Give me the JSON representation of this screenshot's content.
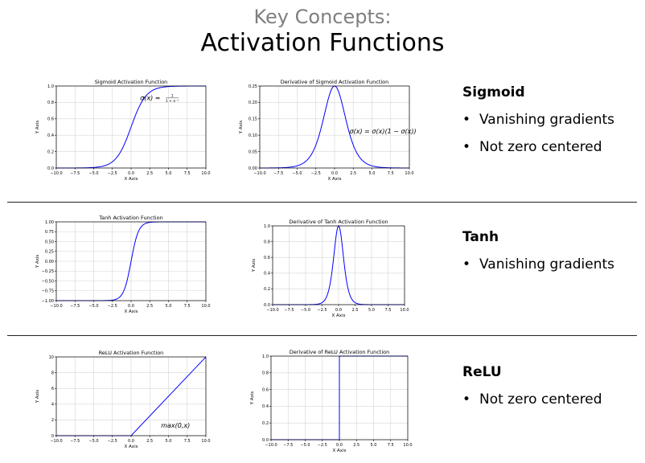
{
  "slide": {
    "kicker": "Key Concepts:",
    "title": "Activation Functions"
  },
  "sections": [
    {
      "heading": "Sigmoid",
      "bullets": [
        "Vanishing gradients",
        "Not zero centered"
      ]
    },
    {
      "heading": "Tanh",
      "bullets": [
        "Vanishing gradients"
      ]
    },
    {
      "heading": "ReLU",
      "bullets": [
        "Not zero centered"
      ]
    }
  ],
  "chart_data": [
    {
      "id": "sigmoid",
      "type": "line",
      "fn": "sigmoid",
      "title": "Sigmoid Activation Function",
      "xlabel": "X Axis",
      "ylabel": "Y Axis",
      "xlim": [
        -10,
        10
      ],
      "ylim": [
        0,
        1
      ],
      "xticks": [
        -10,
        -7.5,
        -5,
        -2.5,
        0,
        2.5,
        5,
        7.5,
        10
      ],
      "xtick_labels": [
        "−10.0",
        "−7.5",
        "−5.0",
        "−2.5",
        "0.0",
        "2.5",
        "5.0",
        "7.5",
        "10.0"
      ],
      "yticks": [
        0,
        0.2,
        0.4,
        0.6,
        0.8,
        1.0
      ],
      "ytick_labels": [
        "0.0",
        "0.2",
        "0.4",
        "0.6",
        "0.8",
        "1.0"
      ],
      "grid": true,
      "color": "#0000ff",
      "x": [
        -10,
        -8,
        -6,
        -5,
        -4,
        -3,
        -2,
        -1,
        0,
        1,
        2,
        3,
        4,
        5,
        6,
        8,
        10
      ],
      "y": [
        0.0,
        0.0,
        0.0,
        0.01,
        0.02,
        0.05,
        0.12,
        0.27,
        0.5,
        0.73,
        0.88,
        0.95,
        0.98,
        0.99,
        1.0,
        1.0,
        1.0
      ],
      "annotation": {
        "main": "σ(x) =",
        "num": "1",
        "den": "1 + e⁻ˣ",
        "x": 1.2,
        "y": 0.83
      }
    },
    {
      "id": "sigmoid-derivative",
      "type": "line",
      "fn": "dsigmoid",
      "title": "Derivative of Sigmoid Activation Function",
      "xlabel": "X Axis",
      "ylabel": "Y Axis",
      "xlim": [
        -10,
        10
      ],
      "ylim": [
        0,
        0.25
      ],
      "xticks": [
        -10,
        -7.5,
        -5,
        -2.5,
        0,
        2.5,
        5,
        7.5,
        10
      ],
      "xtick_labels": [
        "−10.0",
        "−7.5",
        "−5.0",
        "−2.5",
        "0.0",
        "2.5",
        "5.0",
        "7.5",
        "10.0"
      ],
      "yticks": [
        0,
        0.05,
        0.1,
        0.15,
        0.2,
        0.25
      ],
      "ytick_labels": [
        "0.00",
        "0.05",
        "0.10",
        "0.15",
        "0.20",
        "0.25"
      ],
      "grid": true,
      "color": "#0000ff",
      "x": [
        -10,
        -6,
        -4,
        -3,
        -2,
        -1,
        0,
        1,
        2,
        3,
        4,
        6,
        10
      ],
      "y": [
        0.0,
        0.0,
        0.02,
        0.05,
        0.1,
        0.2,
        0.25,
        0.2,
        0.1,
        0.05,
        0.02,
        0.0,
        0.0
      ],
      "annotation": {
        "main": "σ(x) = σ(x)(1 − σ(x))",
        "x": 2.0,
        "y": 0.105
      }
    },
    {
      "id": "tanh",
      "type": "line",
      "fn": "tanh",
      "title": "Tanh Activation Function",
      "xlabel": "X Axis",
      "ylabel": "Y Axis",
      "xlim": [
        -10,
        10
      ],
      "ylim": [
        -1,
        1
      ],
      "xticks": [
        -10,
        -7.5,
        -5,
        -2.5,
        0,
        2.5,
        5,
        7.5,
        10
      ],
      "xtick_labels": [
        "−10.0",
        "−7.5",
        "−5.0",
        "−2.5",
        "0.0",
        "2.5",
        "5.0",
        "7.5",
        "10.0"
      ],
      "yticks": [
        -1,
        -0.75,
        -0.5,
        -0.25,
        0,
        0.25,
        0.5,
        0.75,
        1
      ],
      "ytick_labels": [
        "−1.00",
        "−0.75",
        "−0.50",
        "−0.25",
        "0.00",
        "0.25",
        "0.50",
        "0.75",
        "1.00"
      ],
      "grid": true,
      "color": "#0000ff",
      "x": [
        -10,
        -4,
        -3,
        -2,
        -1,
        0,
        1,
        2,
        3,
        4,
        10
      ],
      "y": [
        -1.0,
        -1.0,
        -0.99,
        -0.96,
        -0.76,
        0.0,
        0.76,
        0.96,
        0.99,
        1.0,
        1.0
      ]
    },
    {
      "id": "tanh-derivative",
      "type": "line",
      "fn": "dtanh",
      "title": "Derivative of Tanh Activation Function",
      "xlabel": "X Axis",
      "ylabel": "Y Axis",
      "xlim": [
        -10,
        10
      ],
      "ylim": [
        0,
        1
      ],
      "xticks": [
        -10,
        -7.5,
        -5,
        -2.5,
        0,
        2.5,
        5,
        7.5,
        10
      ],
      "xtick_labels": [
        "−10.0",
        "−7.5",
        "−5.0",
        "−2.5",
        "0.0",
        "2.5",
        "5.0",
        "7.5",
        "10.0"
      ],
      "yticks": [
        0,
        0.2,
        0.4,
        0.6,
        0.8,
        1.0
      ],
      "ytick_labels": [
        "0.0",
        "0.2",
        "0.4",
        "0.6",
        "0.8",
        "1.0"
      ],
      "grid": true,
      "color": "#0000ff",
      "x": [
        -10,
        -3,
        -2,
        -1,
        -0.5,
        0,
        0.5,
        1,
        2,
        3,
        10
      ],
      "y": [
        0.0,
        0.01,
        0.07,
        0.42,
        0.79,
        1.0,
        0.79,
        0.42,
        0.07,
        0.01,
        0.0
      ]
    },
    {
      "id": "relu",
      "type": "line",
      "fn": "relu",
      "title": "ReLU Activation Function",
      "xlabel": "X Axis",
      "ylabel": "Y Axis",
      "xlim": [
        -10,
        10
      ],
      "ylim": [
        0,
        10
      ],
      "xticks": [
        -10,
        -7.5,
        -5,
        -2.5,
        0,
        2.5,
        5,
        7.5,
        10
      ],
      "xtick_labels": [
        "−10.0",
        "−7.5",
        "−5.0",
        "−2.5",
        "0.0",
        "2.5",
        "5.0",
        "7.5",
        "10.0"
      ],
      "yticks": [
        0,
        2,
        4,
        6,
        8,
        10
      ],
      "ytick_labels": [
        "0",
        "2",
        "4",
        "6",
        "8",
        "10"
      ],
      "grid": true,
      "color": "#0000ff",
      "x": [
        -10,
        0,
        10
      ],
      "y": [
        0,
        0,
        10
      ],
      "annotation": {
        "main": "max(0,x)",
        "x": 4.0,
        "y": 1.0
      }
    },
    {
      "id": "relu-derivative",
      "type": "line",
      "fn": "drelu",
      "title": "Derivative of ReLU Activation Function",
      "xlabel": "X Axis",
      "ylabel": "Y Axis",
      "xlim": [
        -10,
        10
      ],
      "ylim": [
        0,
        1
      ],
      "xticks": [
        -10,
        -7.5,
        -5,
        -2.5,
        0,
        2.5,
        5,
        7.5,
        10
      ],
      "xtick_labels": [
        "−10.0",
        "−7.5",
        "−5.0",
        "−2.5",
        "0.0",
        "2.5",
        "5.0",
        "7.5",
        "10.0"
      ],
      "yticks": [
        0,
        0.2,
        0.4,
        0.6,
        0.8,
        1.0
      ],
      "ytick_labels": [
        "0.0",
        "0.2",
        "0.4",
        "0.6",
        "0.8",
        "1.0"
      ],
      "grid": true,
      "color": "#0000ff",
      "x": [
        -10,
        0,
        0,
        10
      ],
      "y": [
        0,
        0,
        1,
        1
      ]
    }
  ]
}
